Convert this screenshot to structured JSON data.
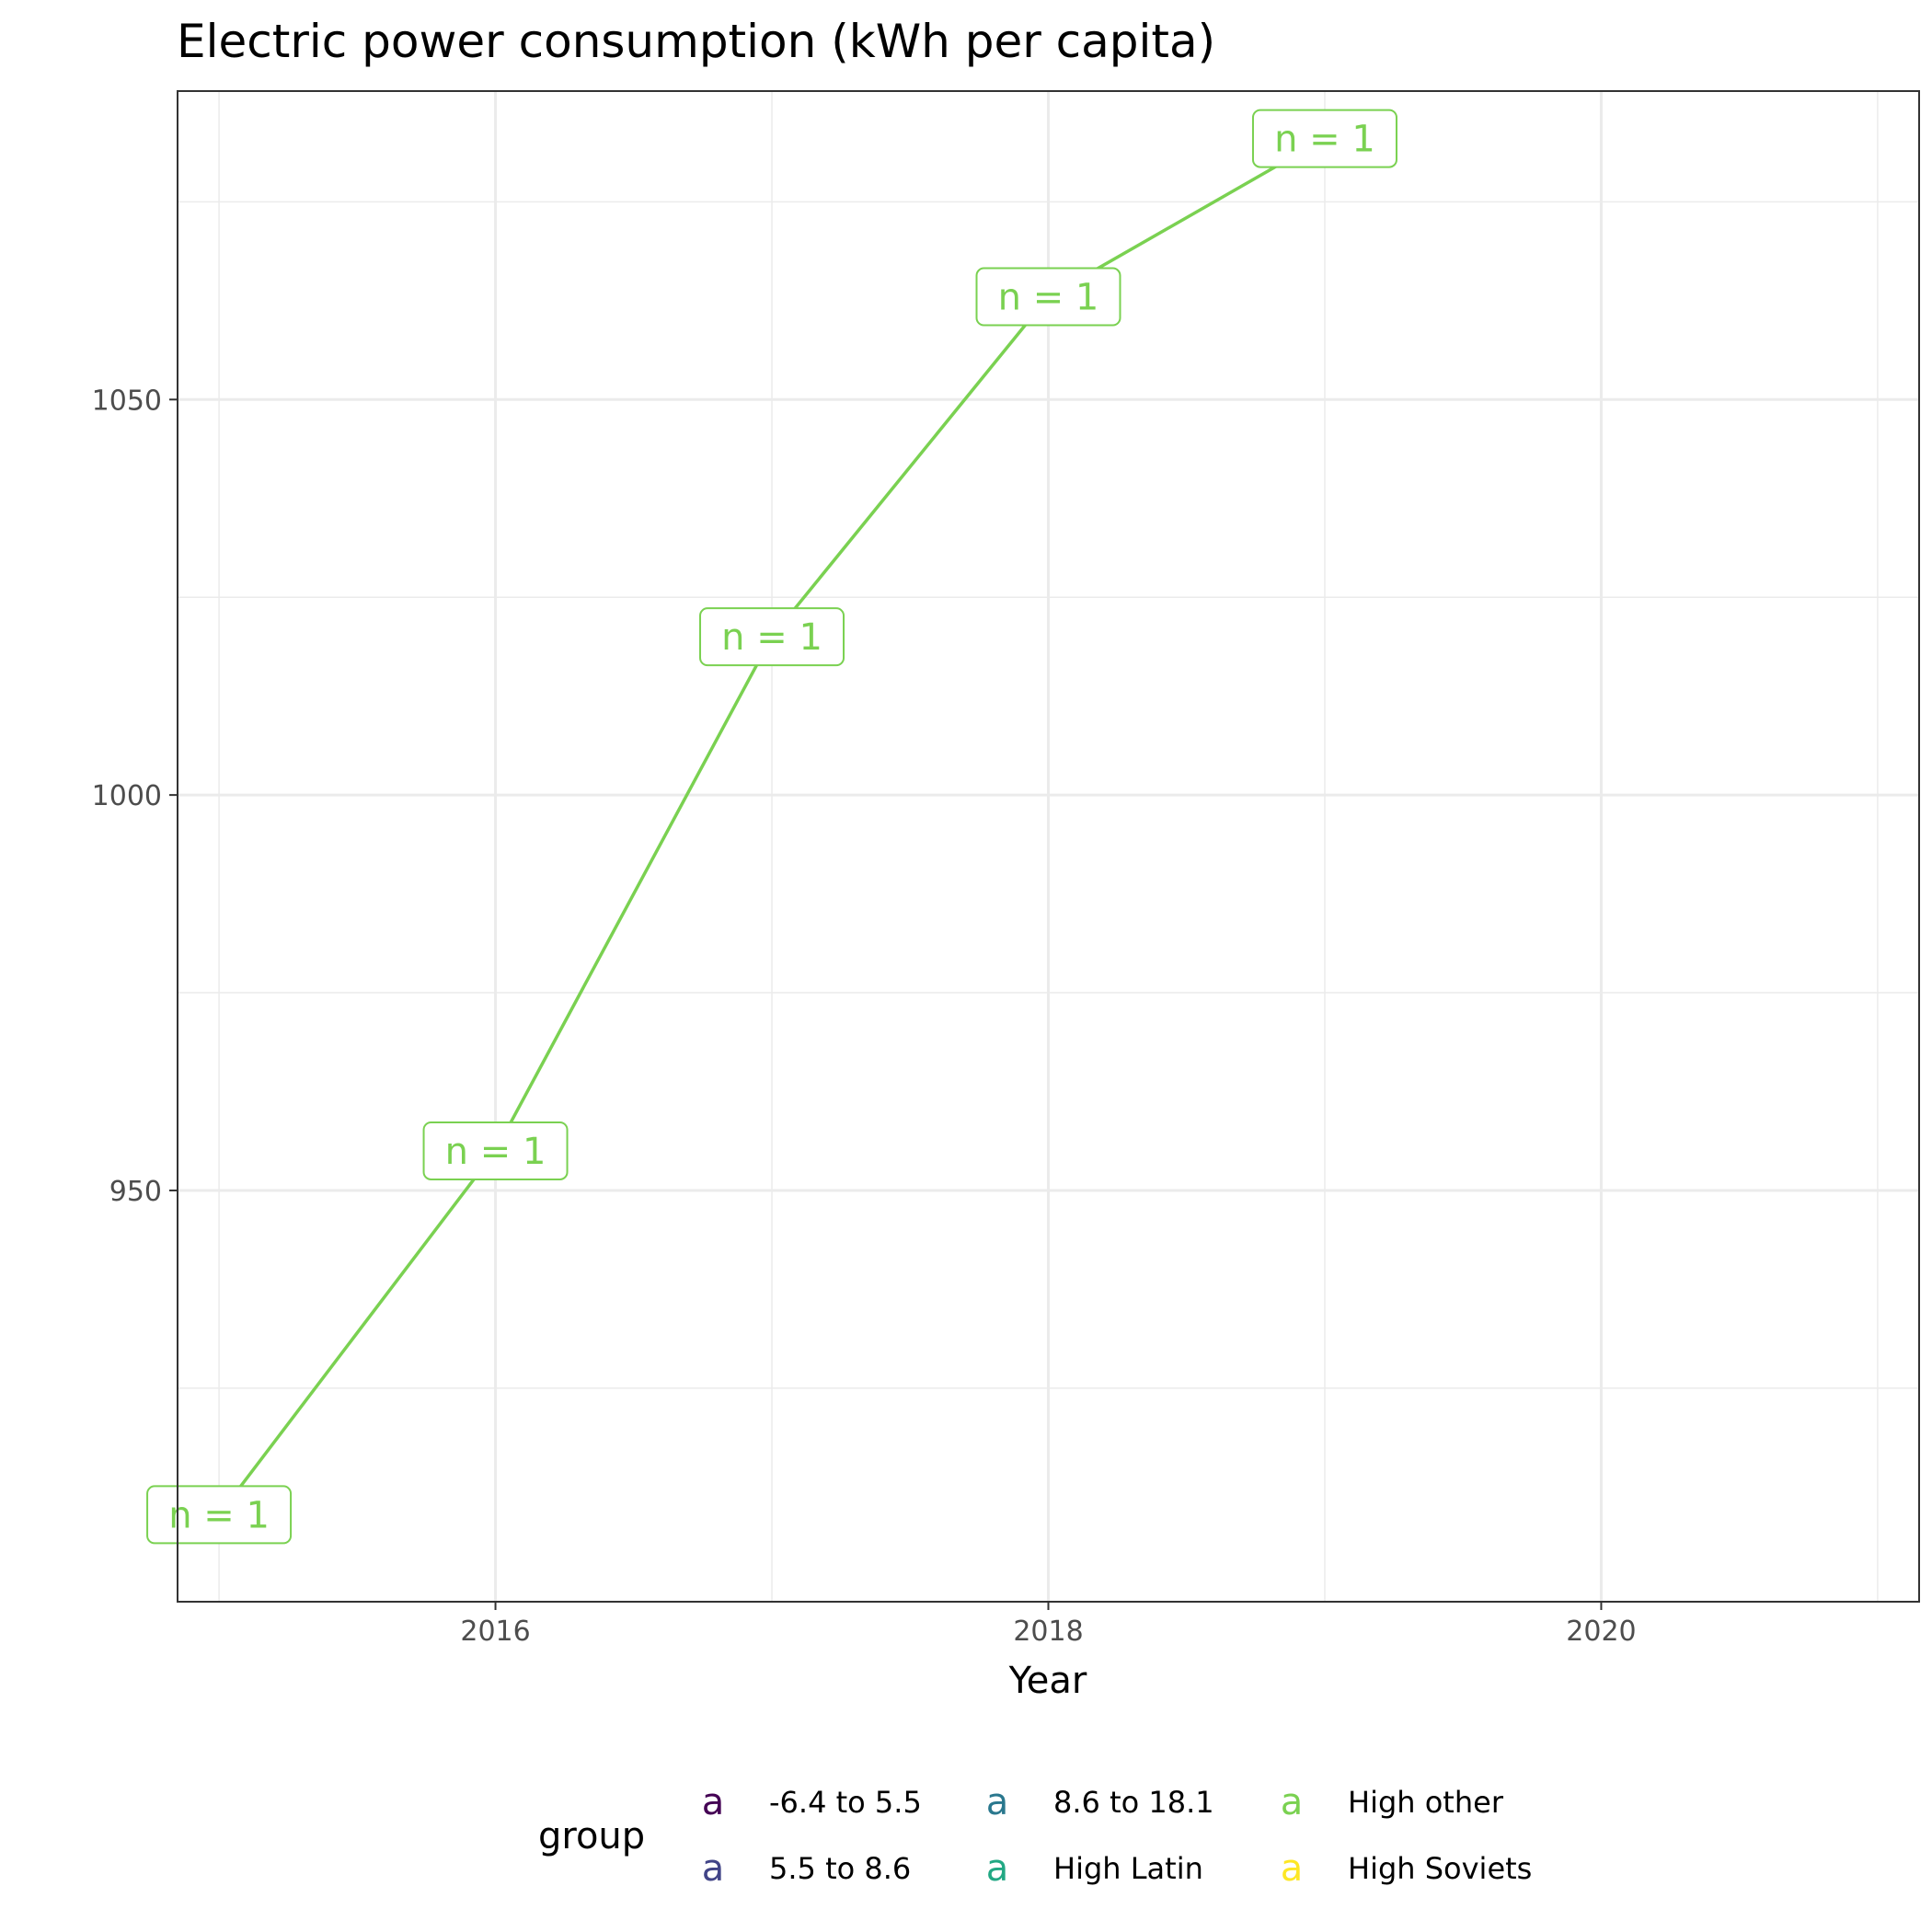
{
  "chart_data": {
    "type": "line",
    "title": "Electric power consumption (kWh per capita)",
    "xlabel": "Year",
    "ylabel": "",
    "xlim": [
      2014.85,
      2021.15
    ],
    "ylim": [
      898,
      1089
    ],
    "x_ticks": [
      2016,
      2018,
      2020
    ],
    "y_ticks": [
      950,
      1000,
      1050
    ],
    "grid": true,
    "series": [
      {
        "name": "High other",
        "color": "#7ad151",
        "x": [
          2015,
          2016,
          2017,
          2018,
          2019
        ],
        "y": [
          909,
          955,
          1020,
          1063,
          1083
        ],
        "labels": [
          "n = 1",
          "n = 1",
          "n = 1",
          "n = 1",
          "n = 1"
        ]
      }
    ],
    "legend": {
      "title": "group",
      "position": "bottom",
      "key_glyph": "a",
      "entries": [
        {
          "label": "-6.4 to 5.5",
          "color": "#440154"
        },
        {
          "label": "5.5 to 8.6",
          "color": "#414487"
        },
        {
          "label": "8.6 to 18.1",
          "color": "#2a788e"
        },
        {
          "label": "High Latin",
          "color": "#22a884"
        },
        {
          "label": "High other",
          "color": "#7ad151"
        },
        {
          "label": "High Soviets",
          "color": "#fde725"
        }
      ]
    }
  }
}
